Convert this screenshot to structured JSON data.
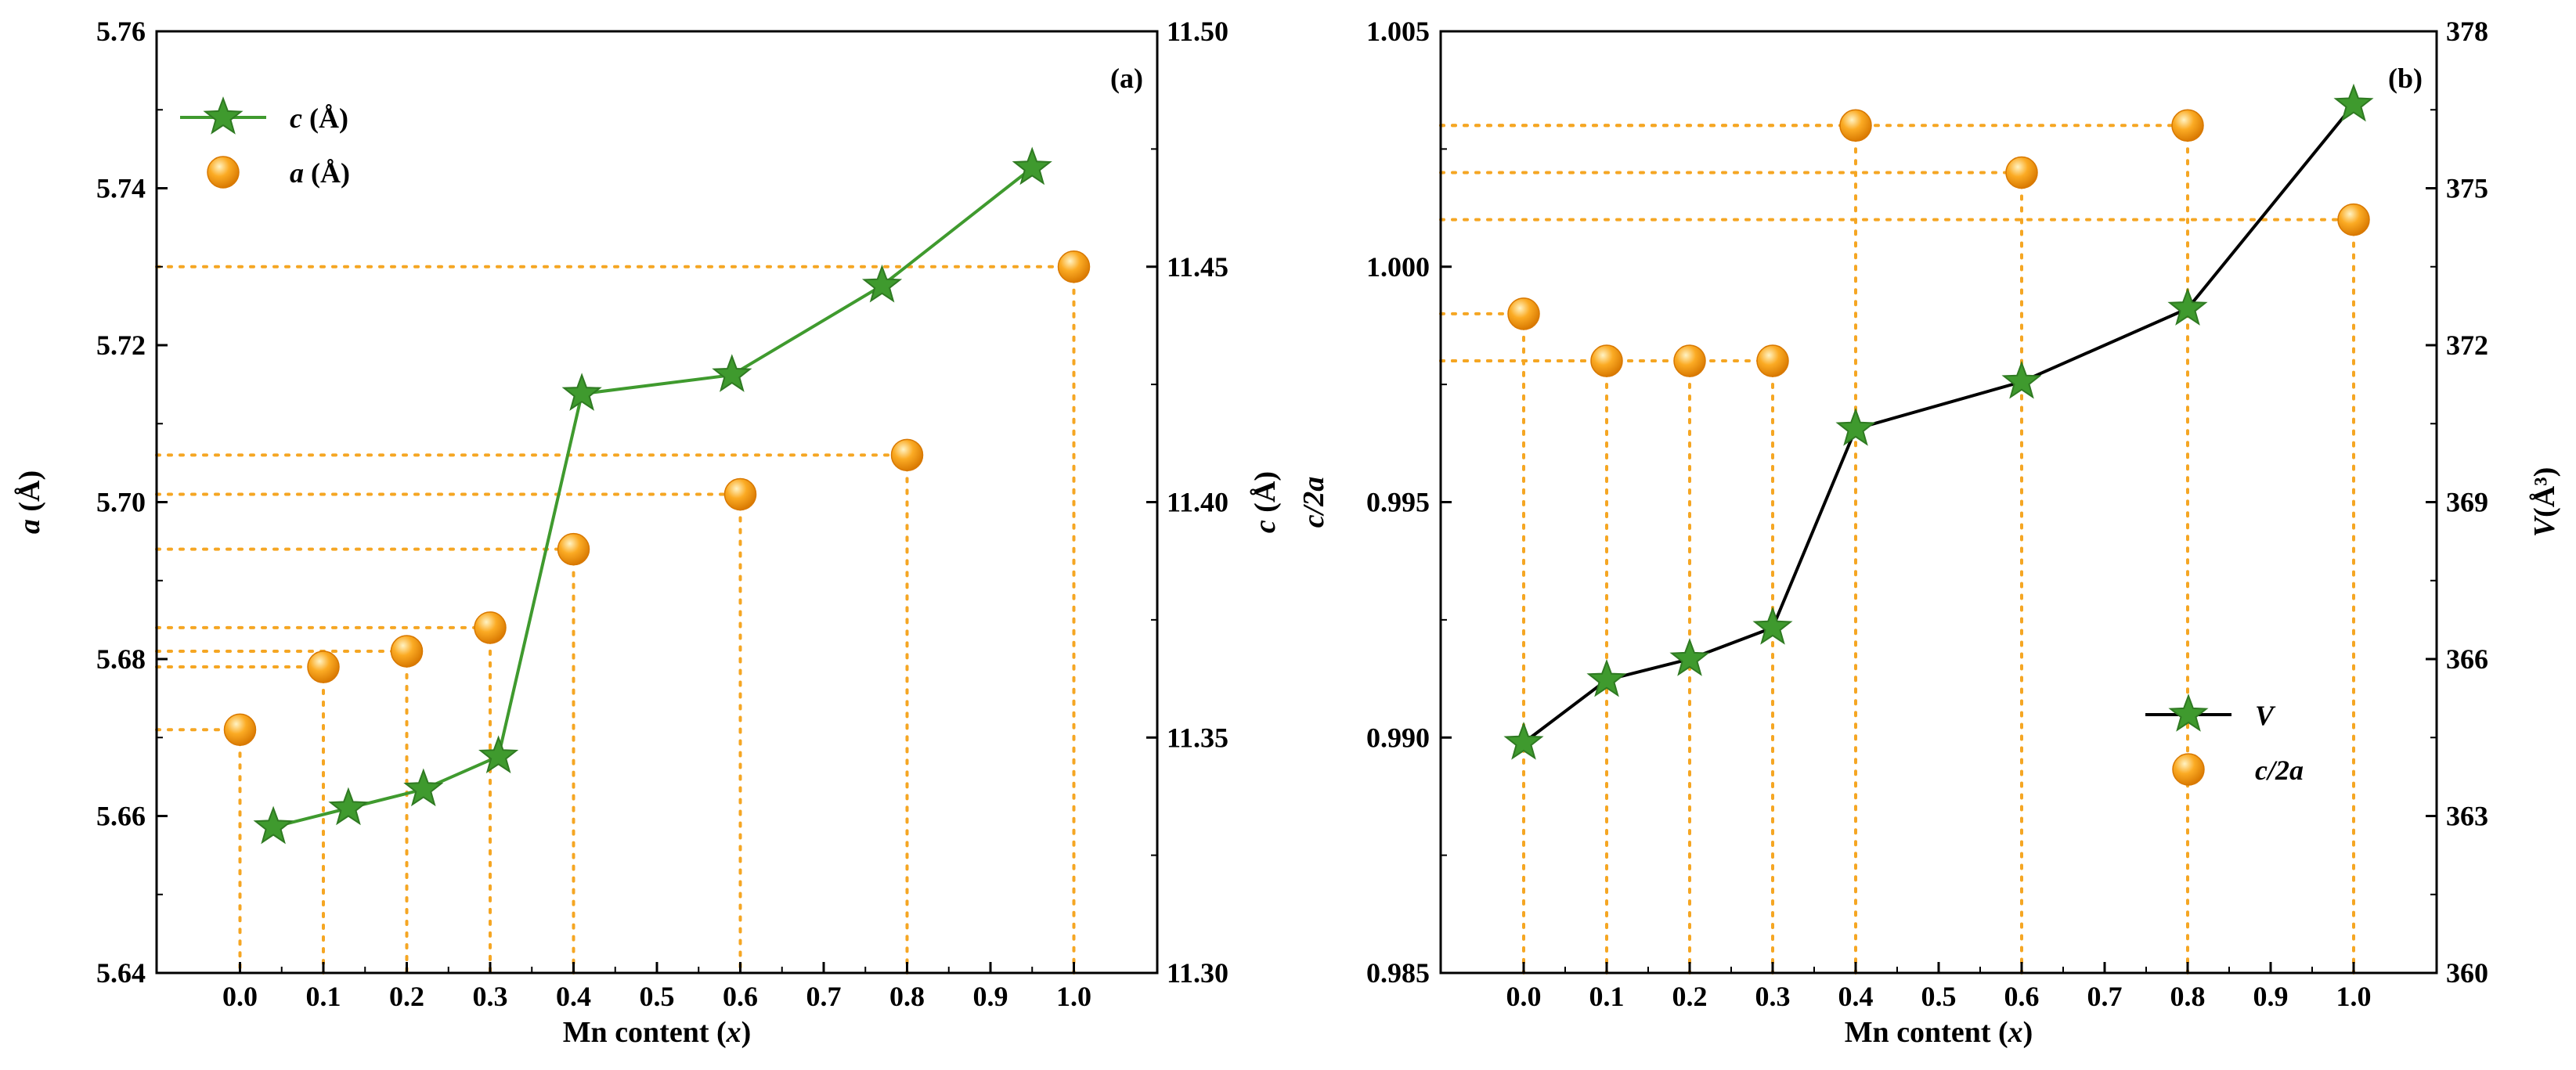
{
  "colors": {
    "star_fill": "#3f9a2e",
    "star_stroke": "#2f7a22",
    "sphere_light": "#fff3c4",
    "sphere_mid": "#fbab24",
    "sphere_dark": "#d87800",
    "guide": "#f5a623",
    "axis": "#000000"
  },
  "chart_data": [
    {
      "type": "line+scatter",
      "panel_label": "(a)",
      "xlabel_pre": "Mn content (",
      "xlabel_var": "x",
      "xlabel_post": ")",
      "xlim": [
        -0.1,
        1.1
      ],
      "x_ticks": [
        "0.0",
        "0.1",
        "0.2",
        "0.3",
        "0.4",
        "0.5",
        "0.6",
        "0.7",
        "0.8",
        "0.9",
        "1.0"
      ],
      "left_axis": {
        "label_var": "a",
        "label_unit": " (Å)",
        "lim": [
          5.64,
          5.76
        ],
        "ticks": [
          "5.64",
          "5.66",
          "5.68",
          "5.70",
          "5.72",
          "5.74",
          "5.76"
        ]
      },
      "right_axis": {
        "label_var": "c",
        "label_unit": " (Å)",
        "lim": [
          11.3,
          11.5
        ],
        "ticks": [
          "11.30",
          "11.35",
          "11.40",
          "11.45",
          "11.50"
        ]
      },
      "series": [
        {
          "name": "c (Å)",
          "legend_var": "c",
          "legend_unit": " (Å)",
          "marker": "star-line",
          "axis": "right",
          "x": [
            0.04,
            0.13,
            0.22,
            0.31,
            0.41,
            0.59,
            0.77,
            0.95
          ],
          "values": [
            11.331,
            11.335,
            11.339,
            11.346,
            11.423,
            11.427,
            11.446,
            11.471
          ]
        },
        {
          "name": "a (Å)",
          "legend_var": "a",
          "legend_unit": " (Å)",
          "marker": "sphere",
          "axis": "left",
          "x": [
            0.0,
            0.1,
            0.2,
            0.3,
            0.4,
            0.6,
            0.8,
            1.0
          ],
          "values": [
            5.671,
            5.679,
            5.681,
            5.684,
            5.694,
            5.701,
            5.706,
            5.73
          ]
        }
      ],
      "legend_position": "top-left"
    },
    {
      "type": "line+scatter",
      "panel_label": "(b)",
      "xlabel_pre": "Mn content (",
      "xlabel_var": "x",
      "xlabel_post": ")",
      "xlim": [
        -0.1,
        1.1
      ],
      "x_ticks": [
        "0.0",
        "0.1",
        "0.2",
        "0.3",
        "0.4",
        "0.5",
        "0.6",
        "0.7",
        "0.8",
        "0.9",
        "1.0"
      ],
      "left_axis": {
        "label_var": "c/2a",
        "label_unit": "",
        "lim": [
          0.985,
          1.005
        ],
        "ticks": [
          "0.985",
          "0.990",
          "0.995",
          "1.000",
          "1.005"
        ]
      },
      "right_axis": {
        "label_var": "V",
        "label_unit": "(Å³)",
        "lim": [
          360,
          378
        ],
        "ticks": [
          "360",
          "363",
          "366",
          "369",
          "372",
          "375",
          "378"
        ]
      },
      "series": [
        {
          "name": "V",
          "legend_var": "V",
          "legend_unit": "",
          "marker": "star-line",
          "axis": "right",
          "x": [
            0.0,
            0.1,
            0.2,
            0.3,
            0.4,
            0.6,
            0.8,
            1.0
          ],
          "values": [
            364.4,
            365.6,
            366.0,
            366.6,
            370.4,
            371.3,
            372.7,
            376.6
          ]
        },
        {
          "name": "c/2a",
          "legend_var": "c/2a",
          "legend_unit": "",
          "marker": "sphere",
          "axis": "left",
          "x": [
            0.0,
            0.1,
            0.2,
            0.3,
            0.4,
            0.6,
            0.8,
            1.0
          ],
          "values": [
            0.999,
            0.998,
            0.998,
            0.998,
            1.003,
            1.002,
            1.003,
            1.001
          ]
        }
      ],
      "legend_position": "bottom-right"
    }
  ]
}
